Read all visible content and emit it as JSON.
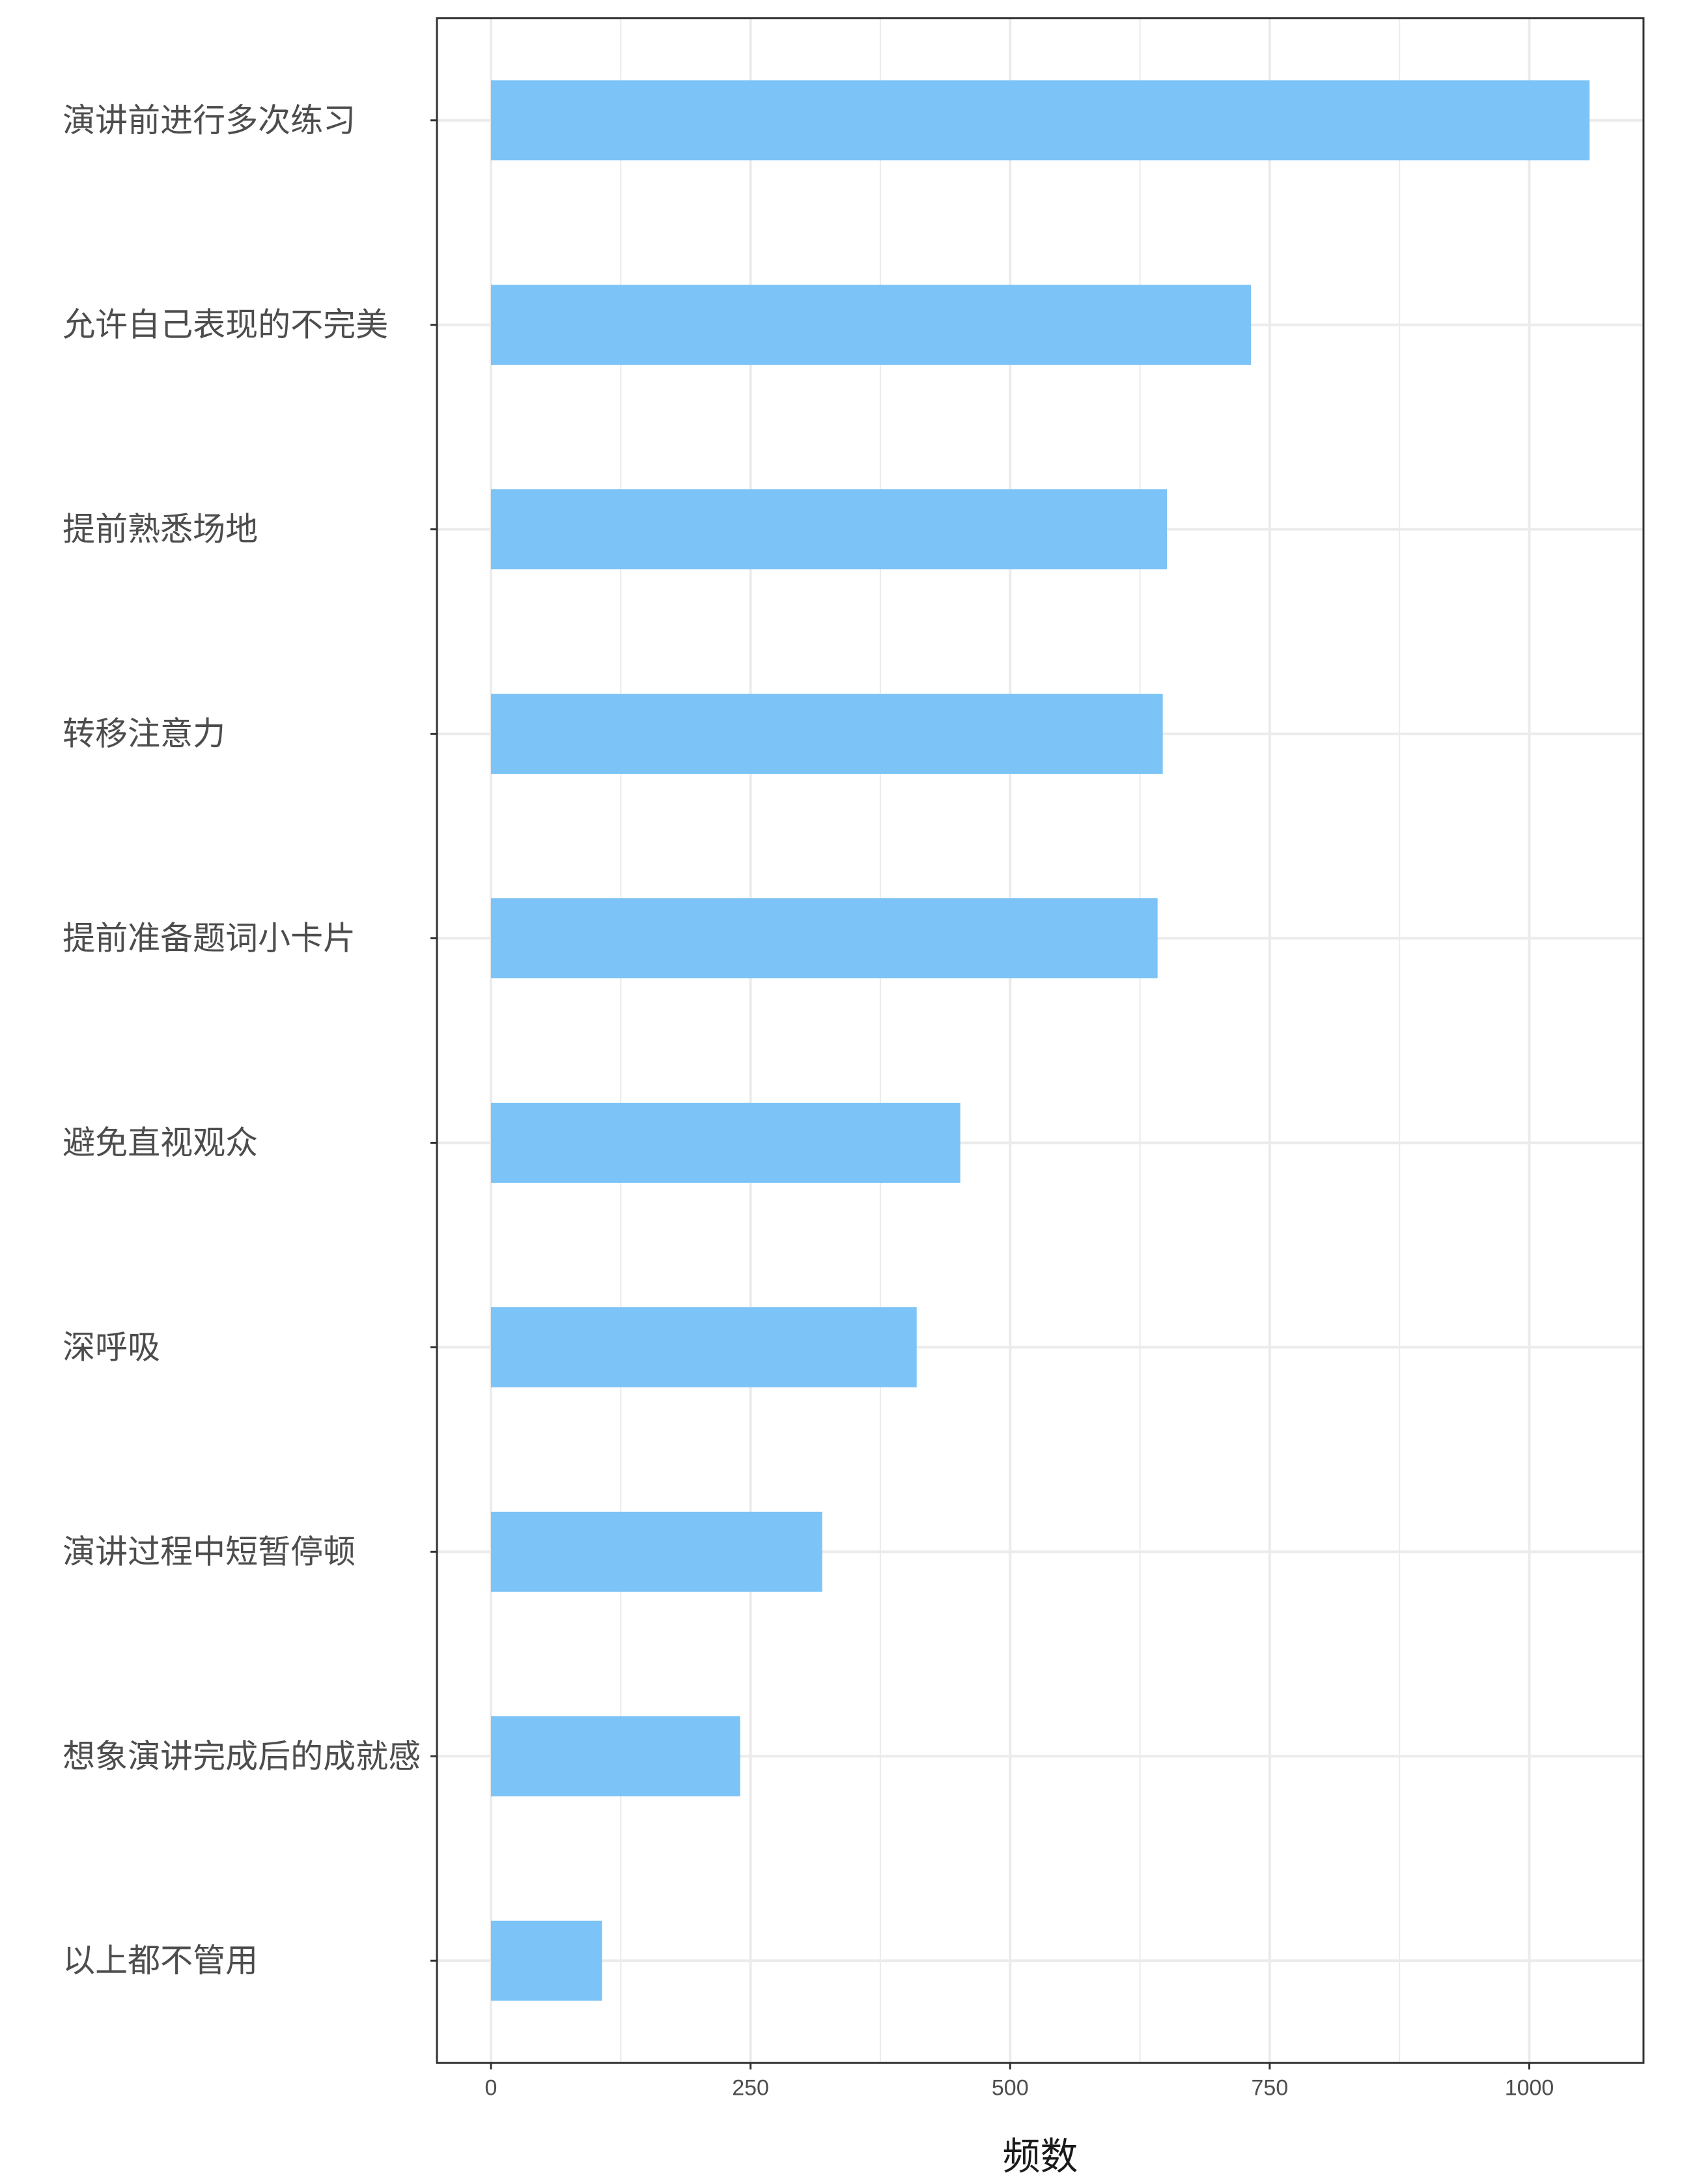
{
  "chart_data": {
    "type": "bar",
    "orientation": "horizontal",
    "categories": [
      "演讲前进行多次练习",
      "允许自己表现的不完美",
      "提前熟悉场地",
      "转移注意力",
      "提前准备题词小卡片",
      "避免直视观众",
      "深呼吸",
      "演讲过程中短暂停顿",
      "想象演讲完成后的成就感",
      "以上都不管用"
    ],
    "values": [
      1058,
      732,
      651,
      647,
      642,
      452,
      410,
      319,
      240,
      107
    ],
    "xlabel": "频数",
    "ylabel": "",
    "xlim": [
      -52,
      1110
    ],
    "xticks": [
      0,
      250,
      500,
      750,
      1000
    ],
    "minor_xticks": [
      125,
      375,
      625,
      875
    ],
    "grid": true,
    "legend": "none",
    "colors": {
      "bar": "#7cc3f7",
      "grid": "#ebebeb",
      "panel_border": "#333333",
      "text": "#4d4d4d"
    }
  }
}
